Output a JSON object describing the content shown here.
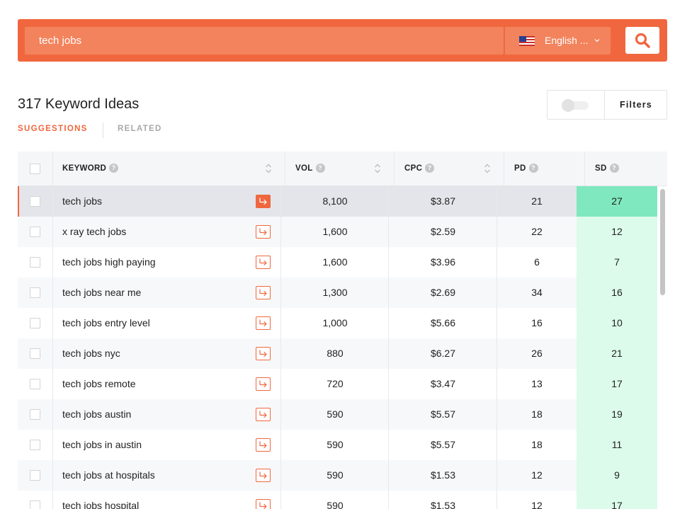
{
  "search": {
    "query": "tech jobs",
    "language": "English ...",
    "search_icon": "magnifier-icon",
    "flag_icon": "us-flag-icon"
  },
  "results": {
    "title": "317 Keyword Ideas",
    "tabs": [
      {
        "label": "SUGGESTIONS",
        "active": true
      },
      {
        "label": "RELATED",
        "active": false
      }
    ],
    "filters_label": "Filters"
  },
  "table": {
    "columns": {
      "keyword": "KEYWORD",
      "vol": "VOL",
      "cpc": "CPC",
      "pd": "PD",
      "sd": "SD"
    },
    "rows": [
      {
        "keyword": "tech jobs",
        "vol": "8,100",
        "cpc": "$3.87",
        "pd": "21",
        "sd": "27"
      },
      {
        "keyword": "x ray tech jobs",
        "vol": "1,600",
        "cpc": "$2.59",
        "pd": "22",
        "sd": "12"
      },
      {
        "keyword": "tech jobs high paying",
        "vol": "1,600",
        "cpc": "$3.96",
        "pd": "6",
        "sd": "7"
      },
      {
        "keyword": "tech jobs near me",
        "vol": "1,300",
        "cpc": "$2.69",
        "pd": "34",
        "sd": "16"
      },
      {
        "keyword": "tech jobs entry level",
        "vol": "1,000",
        "cpc": "$5.66",
        "pd": "16",
        "sd": "10"
      },
      {
        "keyword": "tech jobs nyc",
        "vol": "880",
        "cpc": "$6.27",
        "pd": "26",
        "sd": "21"
      },
      {
        "keyword": "tech jobs remote",
        "vol": "720",
        "cpc": "$3.47",
        "pd": "13",
        "sd": "17"
      },
      {
        "keyword": "tech jobs austin",
        "vol": "590",
        "cpc": "$5.57",
        "pd": "18",
        "sd": "19"
      },
      {
        "keyword": "tech jobs in austin",
        "vol": "590",
        "cpc": "$5.57",
        "pd": "18",
        "sd": "11"
      },
      {
        "keyword": "tech jobs at hospitals",
        "vol": "590",
        "cpc": "$1.53",
        "pd": "12",
        "sd": "9"
      },
      {
        "keyword": "tech jobs hospital",
        "vol": "590",
        "cpc": "$1.53",
        "pd": "12",
        "sd": "17"
      }
    ]
  },
  "colors": {
    "accent": "#f0673f",
    "sd_easy": "#dcfbeb",
    "sd_selected": "#7fe8be"
  }
}
